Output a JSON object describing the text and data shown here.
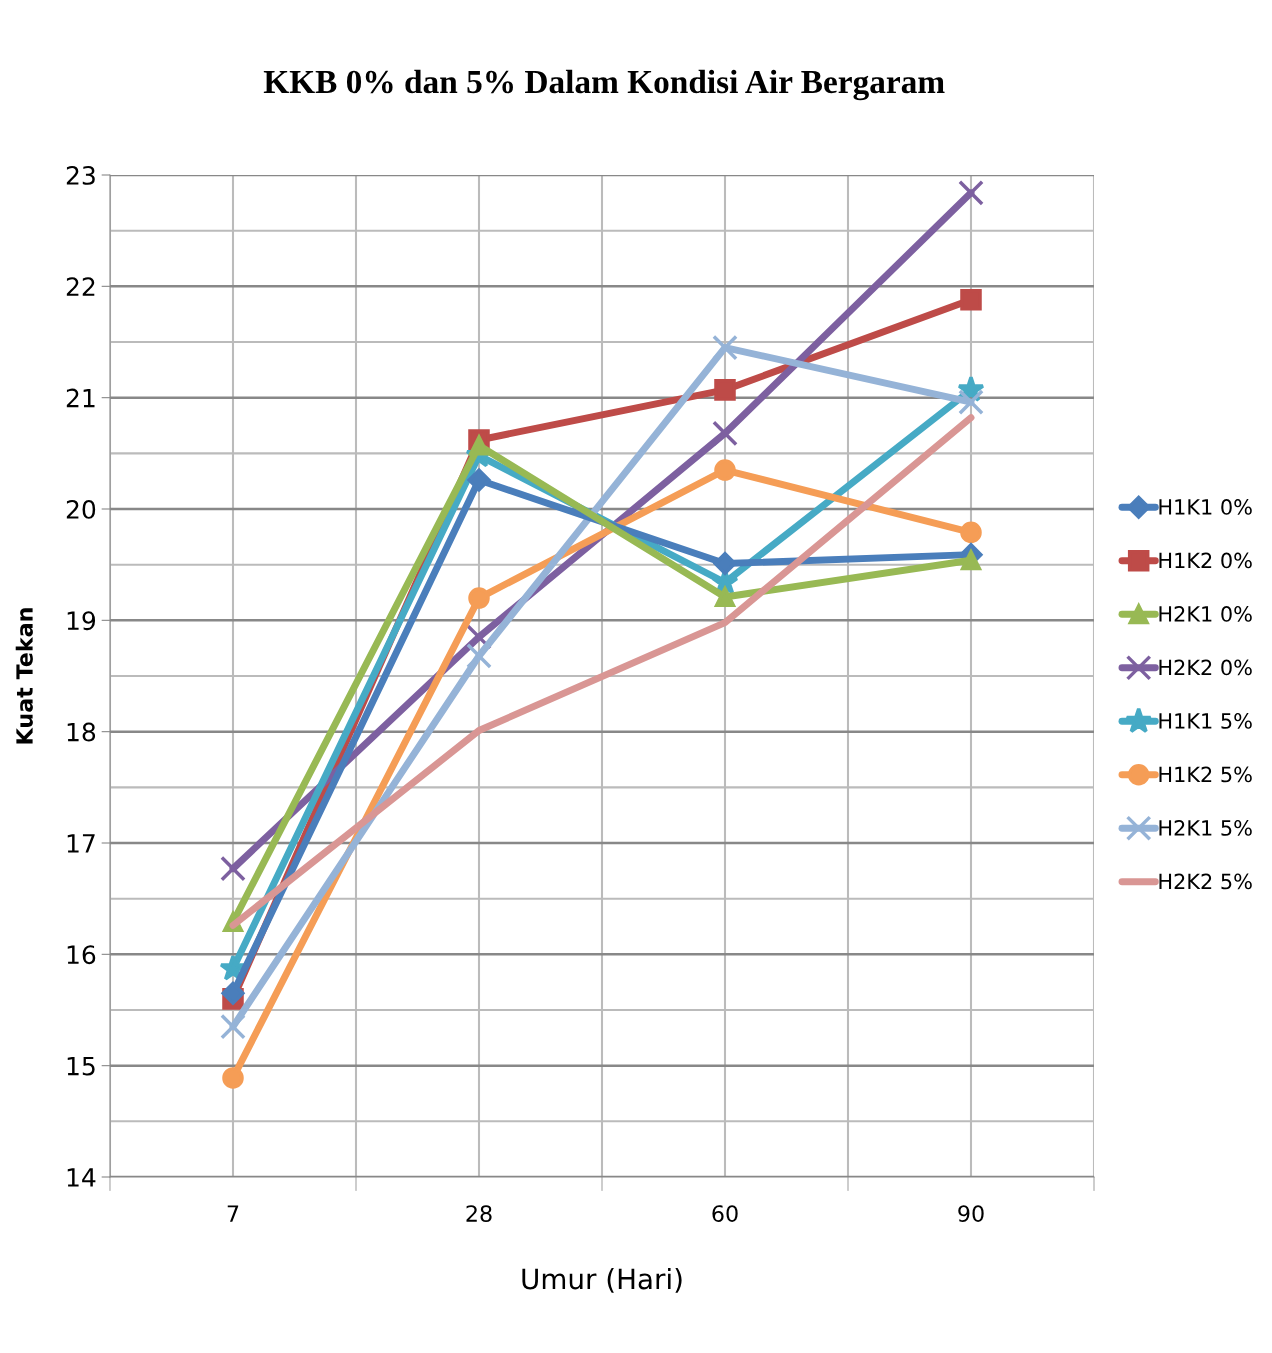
{
  "chart_data": {
    "type": "line",
    "title": "KKB 0% dan 5% Dalam Kondisi Air Bergaram",
    "xlabel": "Umur (Hari)",
    "ylabel": "Kuat Tekan",
    "categories": [
      "7",
      "28",
      "60",
      "90"
    ],
    "ylim": [
      14,
      23
    ],
    "yticks": [
      14,
      15,
      16,
      17,
      18,
      19,
      20,
      21,
      22,
      23
    ],
    "grid": true,
    "legend": "right",
    "series": [
      {
        "name": "H1K1 0%",
        "color": "#4a7ebb",
        "marker": "diamond",
        "values": [
          15.65,
          20.26,
          19.51,
          19.59
        ]
      },
      {
        "name": "H1K2 0%",
        "color": "#be4b48",
        "marker": "square",
        "values": [
          15.6,
          20.62,
          21.07,
          21.88
        ]
      },
      {
        "name": "H2K1 0%",
        "color": "#98b954",
        "marker": "triangle",
        "values": [
          16.29,
          20.57,
          19.21,
          19.54
        ]
      },
      {
        "name": "H2K2 0%",
        "color": "#7d60a0",
        "marker": "cross",
        "values": [
          16.77,
          18.85,
          20.68,
          22.84
        ]
      },
      {
        "name": "H1K1 5%",
        "color": "#46aac5",
        "marker": "star",
        "values": [
          15.87,
          20.48,
          19.34,
          21.07
        ]
      },
      {
        "name": "H1K2 5%",
        "color": "#f59d56",
        "marker": "circle",
        "values": [
          14.89,
          19.2,
          20.35,
          19.79
        ]
      },
      {
        "name": "H2K1 5%",
        "color": "#95b3d7",
        "marker": "cross",
        "values": [
          15.35,
          18.68,
          21.45,
          20.96
        ]
      },
      {
        "name": "H2K2 5%",
        "color": "#d99694",
        "marker": "none",
        "values": [
          16.26,
          18.01,
          18.98,
          20.82
        ]
      }
    ]
  }
}
